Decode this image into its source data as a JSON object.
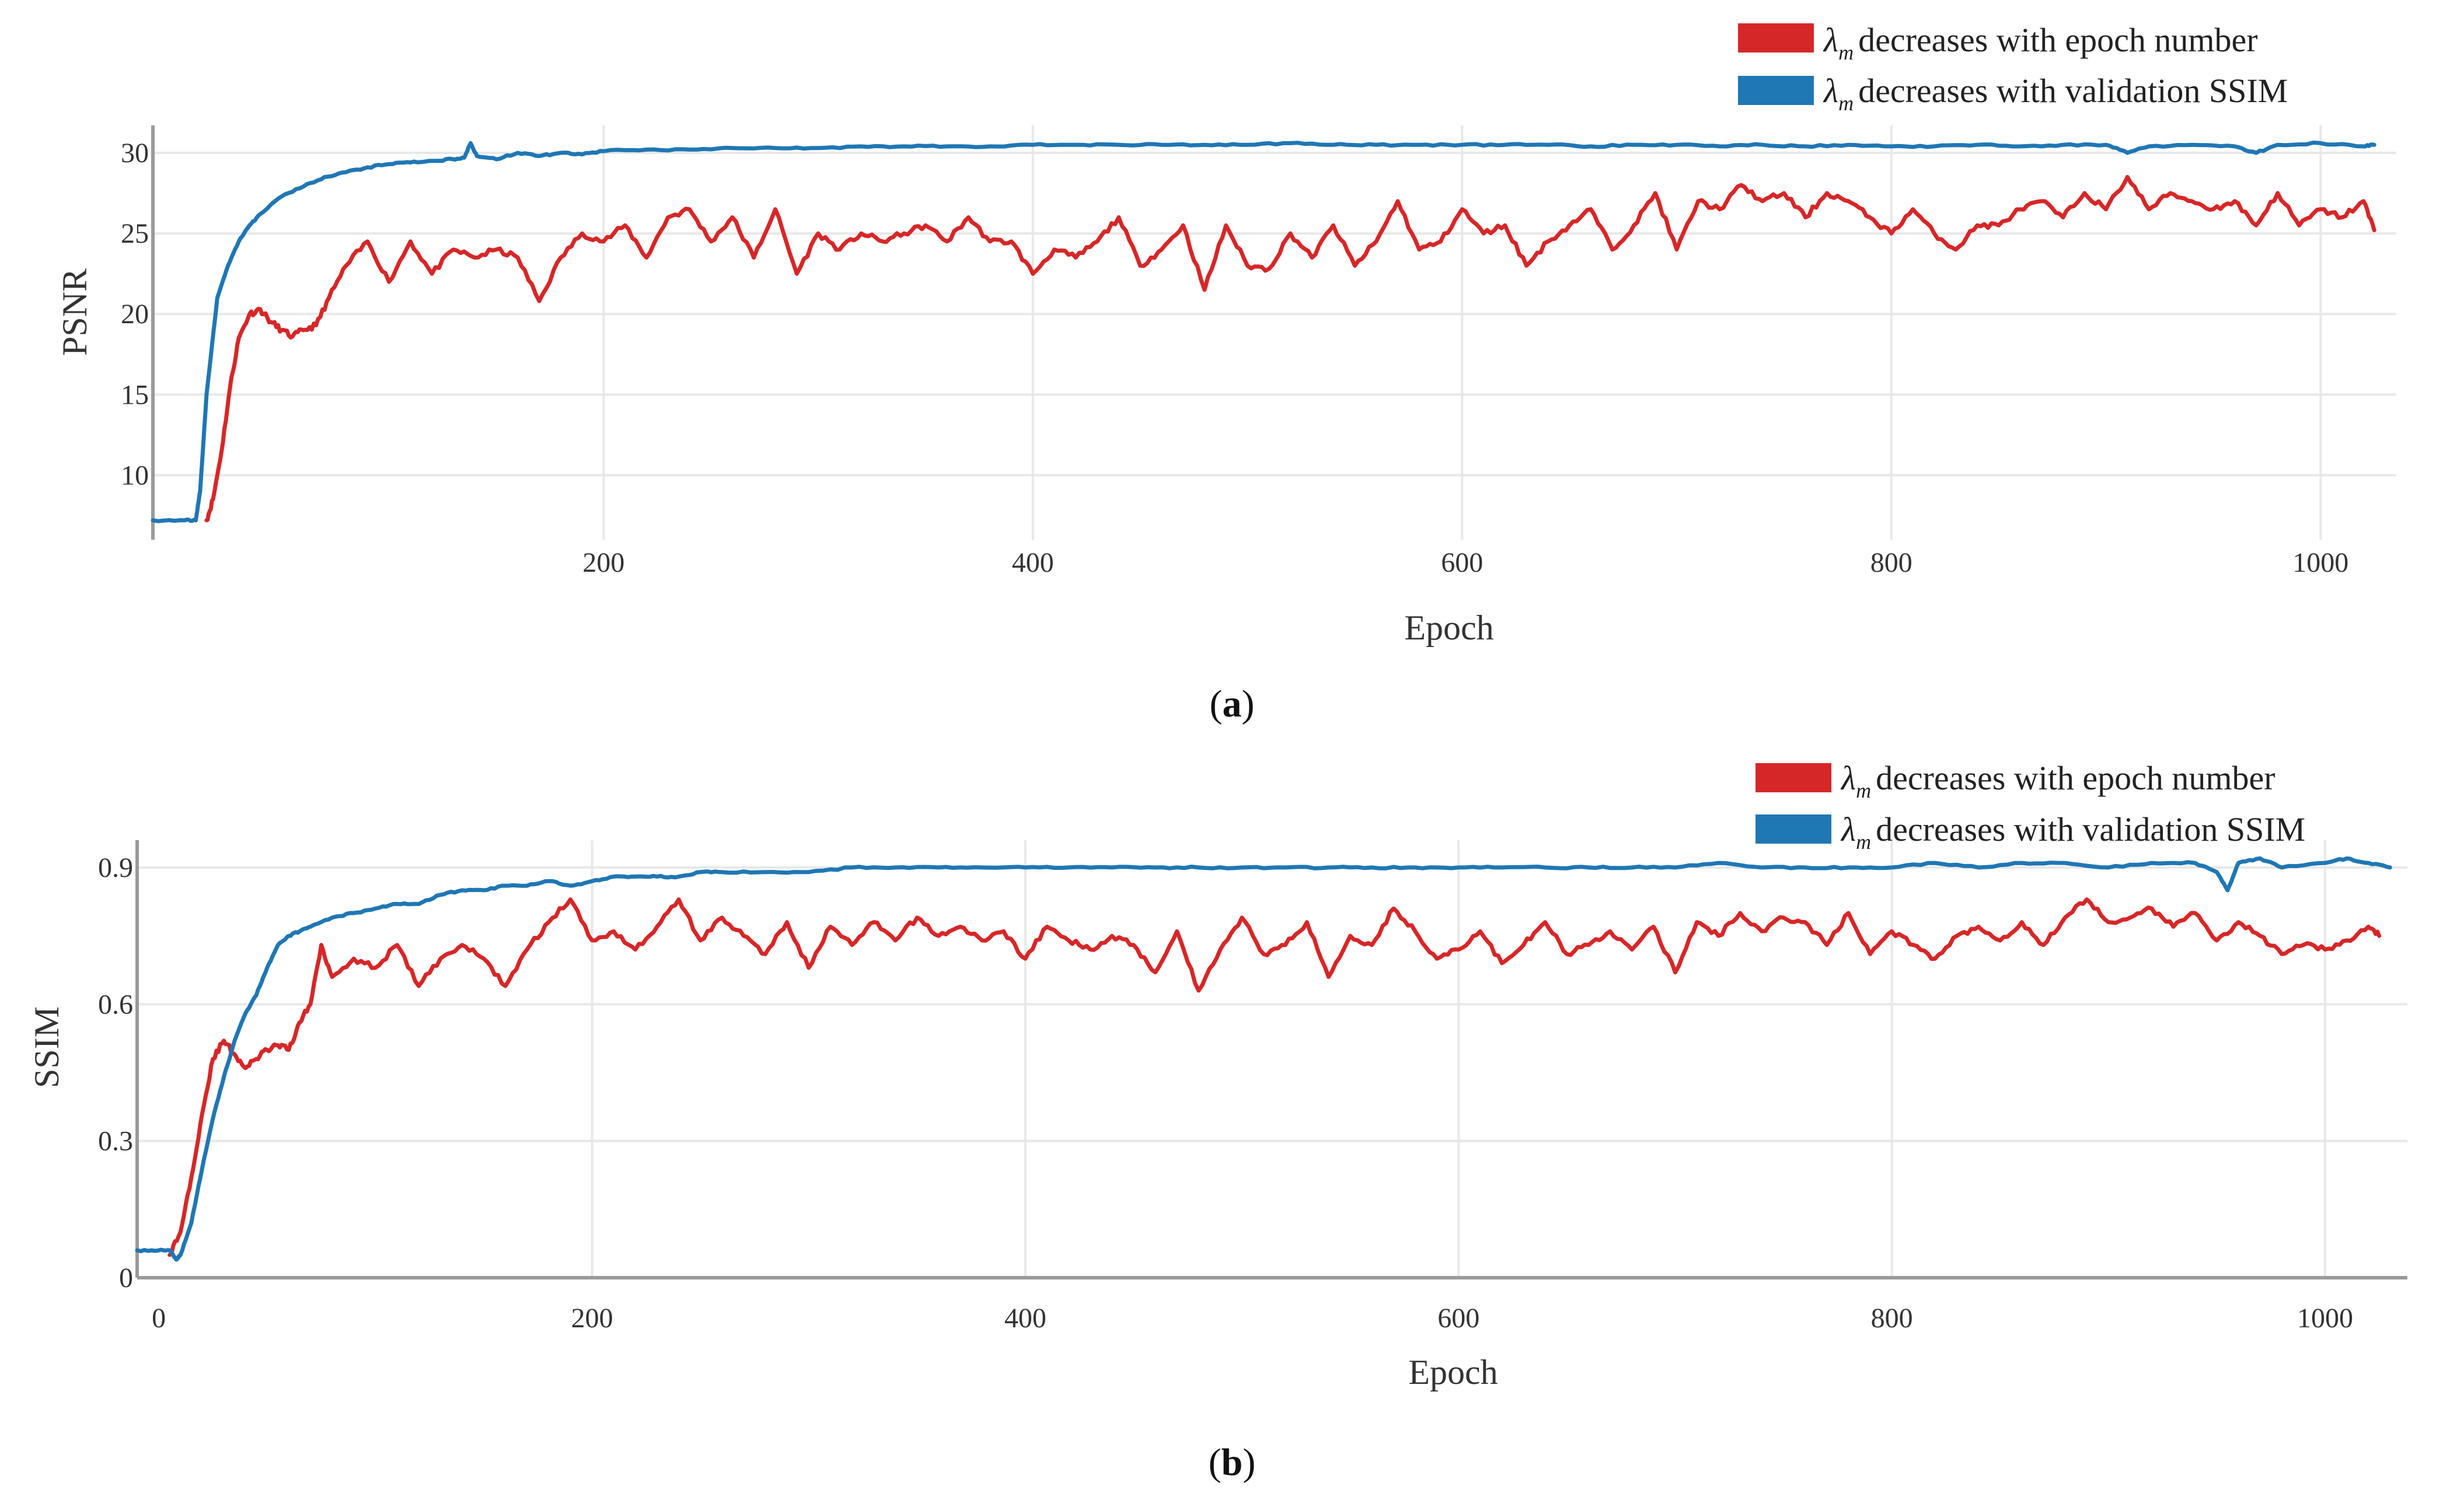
{
  "chart_data": [
    {
      "type": "line",
      "panel_label": "a",
      "title": "",
      "xlabel": "Epoch",
      "ylabel": "PSNR",
      "xlim": [
        -10,
        1035
      ],
      "ylim": [
        6,
        31.7
      ],
      "xticks": [
        200,
        400,
        600,
        800,
        1000
      ],
      "yticks": [
        10,
        15,
        20,
        25,
        30
      ],
      "grid": true,
      "legend_position": "top-right",
      "series": [
        {
          "name": "decreases with epoch number",
          "legend_symbol": "λ",
          "legend_subscript": "m",
          "color": "#d62728",
          "x": [
            15,
            18,
            22,
            26,
            30,
            35,
            40,
            45,
            50,
            55,
            60,
            66,
            72,
            80,
            90,
            100,
            110,
            120,
            130,
            140,
            150,
            160,
            170,
            180,
            190,
            200,
            210,
            220,
            230,
            240,
            250,
            260,
            270,
            280,
            290,
            300,
            310,
            320,
            330,
            340,
            350,
            360,
            370,
            380,
            390,
            400,
            410,
            420,
            430,
            440,
            450,
            460,
            470,
            480,
            490,
            500,
            510,
            520,
            530,
            540,
            550,
            560,
            570,
            580,
            590,
            600,
            610,
            620,
            630,
            640,
            650,
            660,
            670,
            680,
            690,
            700,
            710,
            720,
            730,
            740,
            750,
            760,
            770,
            780,
            790,
            800,
            810,
            820,
            830,
            840,
            850,
            860,
            870,
            880,
            890,
            900,
            910,
            920,
            930,
            940,
            950,
            960,
            970,
            980,
            990,
            1000,
            1010,
            1020,
            1025
          ],
          "values": [
            7.2,
            8.5,
            11.5,
            15.5,
            18.5,
            20.0,
            20.3,
            19.5,
            19.0,
            18.6,
            19.0,
            19.3,
            21.0,
            23.0,
            24.5,
            22.0,
            24.5,
            22.5,
            24.0,
            23.5,
            24.0,
            23.5,
            20.8,
            23.5,
            25.0,
            24.5,
            25.5,
            23.5,
            26.0,
            26.5,
            24.5,
            26.0,
            23.5,
            26.5,
            22.5,
            25.0,
            24.0,
            25.0,
            24.5,
            25.0,
            25.5,
            24.5,
            26.0,
            24.5,
            24.5,
            22.5,
            24.0,
            23.5,
            24.5,
            26.0,
            23.0,
            24.0,
            25.5,
            21.5,
            25.5,
            23.0,
            22.8,
            25.0,
            23.5,
            25.5,
            23.0,
            24.5,
            27.0,
            24.0,
            24.5,
            26.5,
            25.0,
            25.5,
            23.0,
            24.5,
            25.5,
            26.5,
            24.0,
            25.5,
            27.5,
            24.0,
            27.0,
            26.5,
            28.0,
            27.0,
            27.5,
            26.0,
            27.5,
            27.0,
            26.0,
            25.0,
            26.5,
            25.0,
            24.0,
            25.5,
            25.5,
            26.5,
            27.0,
            26.0,
            27.5,
            26.5,
            28.5,
            26.5,
            27.5,
            27.0,
            26.5,
            27.0,
            25.5,
            27.5,
            25.5,
            26.5,
            26.0,
            27.0,
            25.2
          ]
        },
        {
          "name": "decreases with validation SSIM",
          "legend_symbol": "λ",
          "legend_subscript": "m",
          "color": "#1f77b4",
          "x": [
            -10,
            5,
            10,
            12,
            15,
            20,
            25,
            30,
            35,
            40,
            50,
            60,
            70,
            80,
            90,
            100,
            110,
            120,
            130,
            135,
            138,
            141,
            150,
            160,
            170,
            180,
            190,
            200,
            220,
            240,
            260,
            280,
            300,
            320,
            340,
            360,
            380,
            400,
            420,
            440,
            460,
            480,
            500,
            520,
            540,
            560,
            580,
            600,
            620,
            640,
            660,
            680,
            700,
            720,
            740,
            760,
            780,
            800,
            820,
            840,
            860,
            880,
            900,
            910,
            920,
            940,
            960,
            970,
            980,
            1000,
            1020,
            1025
          ],
          "values": [
            7.2,
            7.2,
            7.2,
            9.0,
            15.0,
            21.0,
            23.0,
            24.5,
            25.5,
            26.2,
            27.3,
            27.9,
            28.5,
            28.8,
            29.1,
            29.3,
            29.4,
            29.5,
            29.6,
            29.7,
            30.6,
            29.8,
            29.6,
            30.0,
            29.8,
            30.0,
            29.9,
            30.1,
            30.2,
            30.2,
            30.3,
            30.3,
            30.3,
            30.4,
            30.4,
            30.4,
            30.4,
            30.5,
            30.5,
            30.5,
            30.5,
            30.5,
            30.5,
            30.6,
            30.5,
            30.5,
            30.5,
            30.5,
            30.5,
            30.5,
            30.4,
            30.5,
            30.5,
            30.4,
            30.5,
            30.4,
            30.5,
            30.4,
            30.4,
            30.5,
            30.4,
            30.5,
            30.5,
            30.0,
            30.4,
            30.5,
            30.4,
            30.0,
            30.5,
            30.6,
            30.4,
            30.5
          ]
        }
      ]
    },
    {
      "type": "line",
      "panel_label": "b",
      "title": "",
      "xlabel": "Epoch",
      "ylabel": "SSIM",
      "xlim": [
        -10,
        1038
      ],
      "ylim": [
        0,
        0.96
      ],
      "xticks": [
        0,
        200,
        400,
        600,
        800,
        1000
      ],
      "yticks": [
        0,
        0.3,
        0.6,
        0.9
      ],
      "xtick_labels": [
        "0",
        "200",
        "400",
        "600",
        "800",
        "1000"
      ],
      "ytick_labels": [
        "0",
        "0.3",
        "0.6",
        "0.9"
      ],
      "grid": true,
      "legend_position": "top-right",
      "series": [
        {
          "name": "decreases with epoch number",
          "legend_symbol": "λ",
          "legend_subscript": "m",
          "color": "#d62728",
          "x": [
            5,
            10,
            15,
            20,
            25,
            30,
            35,
            40,
            45,
            50,
            55,
            60,
            65,
            70,
            75,
            80,
            90,
            100,
            110,
            120,
            130,
            140,
            150,
            160,
            170,
            180,
            190,
            200,
            210,
            220,
            230,
            240,
            250,
            260,
            270,
            280,
            290,
            300,
            310,
            320,
            330,
            340,
            350,
            360,
            370,
            380,
            390,
            400,
            410,
            420,
            430,
            440,
            450,
            460,
            470,
            480,
            490,
            500,
            510,
            520,
            530,
            540,
            550,
            560,
            570,
            580,
            590,
            600,
            610,
            620,
            630,
            640,
            650,
            660,
            670,
            680,
            690,
            700,
            710,
            720,
            730,
            740,
            750,
            760,
            770,
            780,
            790,
            800,
            810,
            820,
            830,
            840,
            850,
            860,
            870,
            880,
            890,
            900,
            910,
            920,
            930,
            940,
            950,
            960,
            970,
            980,
            990,
            1000,
            1010,
            1020,
            1025
          ],
          "values": [
            0.05,
            0.1,
            0.22,
            0.36,
            0.48,
            0.52,
            0.49,
            0.46,
            0.48,
            0.5,
            0.51,
            0.5,
            0.56,
            0.6,
            0.73,
            0.66,
            0.7,
            0.68,
            0.73,
            0.64,
            0.7,
            0.73,
            0.7,
            0.64,
            0.72,
            0.78,
            0.83,
            0.74,
            0.76,
            0.72,
            0.77,
            0.83,
            0.74,
            0.79,
            0.75,
            0.71,
            0.78,
            0.68,
            0.77,
            0.73,
            0.78,
            0.74,
            0.79,
            0.75,
            0.77,
            0.74,
            0.76,
            0.7,
            0.77,
            0.74,
            0.72,
            0.75,
            0.73,
            0.67,
            0.76,
            0.63,
            0.72,
            0.79,
            0.71,
            0.73,
            0.78,
            0.66,
            0.75,
            0.73,
            0.81,
            0.76,
            0.7,
            0.72,
            0.76,
            0.69,
            0.73,
            0.78,
            0.71,
            0.73,
            0.76,
            0.72,
            0.77,
            0.67,
            0.78,
            0.75,
            0.8,
            0.76,
            0.79,
            0.78,
            0.73,
            0.8,
            0.71,
            0.76,
            0.73,
            0.7,
            0.75,
            0.77,
            0.74,
            0.78,
            0.73,
            0.79,
            0.83,
            0.78,
            0.79,
            0.81,
            0.77,
            0.8,
            0.74,
            0.78,
            0.75,
            0.71,
            0.73,
            0.72,
            0.74,
            0.77,
            0.75
          ]
        },
        {
          "name": "decreases with validation SSIM",
          "legend_symbol": "λ",
          "legend_subscript": "m",
          "color": "#1f77b4",
          "x": [
            -10,
            0,
            5,
            8,
            10,
            15,
            20,
            25,
            30,
            35,
            40,
            45,
            50,
            55,
            60,
            65,
            70,
            80,
            90,
            100,
            110,
            120,
            130,
            140,
            150,
            160,
            170,
            180,
            190,
            200,
            210,
            220,
            230,
            240,
            250,
            260,
            280,
            300,
            320,
            340,
            360,
            380,
            400,
            420,
            440,
            460,
            480,
            500,
            520,
            540,
            560,
            580,
            600,
            620,
            640,
            660,
            680,
            700,
            720,
            740,
            760,
            780,
            800,
            820,
            840,
            860,
            880,
            900,
            920,
            940,
            950,
            955,
            960,
            970,
            980,
            1000,
            1010,
            1020,
            1030
          ],
          "values": [
            0.06,
            0.06,
            0.06,
            0.04,
            0.05,
            0.12,
            0.24,
            0.35,
            0.44,
            0.52,
            0.58,
            0.62,
            0.68,
            0.73,
            0.75,
            0.76,
            0.77,
            0.79,
            0.8,
            0.81,
            0.82,
            0.82,
            0.84,
            0.85,
            0.85,
            0.86,
            0.86,
            0.87,
            0.86,
            0.87,
            0.88,
            0.88,
            0.88,
            0.88,
            0.89,
            0.89,
            0.89,
            0.89,
            0.9,
            0.9,
            0.9,
            0.9,
            0.9,
            0.9,
            0.9,
            0.9,
            0.9,
            0.9,
            0.9,
            0.9,
            0.9,
            0.9,
            0.9,
            0.9,
            0.9,
            0.9,
            0.9,
            0.9,
            0.91,
            0.9,
            0.9,
            0.9,
            0.9,
            0.91,
            0.9,
            0.91,
            0.91,
            0.9,
            0.91,
            0.91,
            0.89,
            0.85,
            0.91,
            0.92,
            0.9,
            0.91,
            0.92,
            0.91,
            0.9
          ]
        }
      ]
    }
  ]
}
